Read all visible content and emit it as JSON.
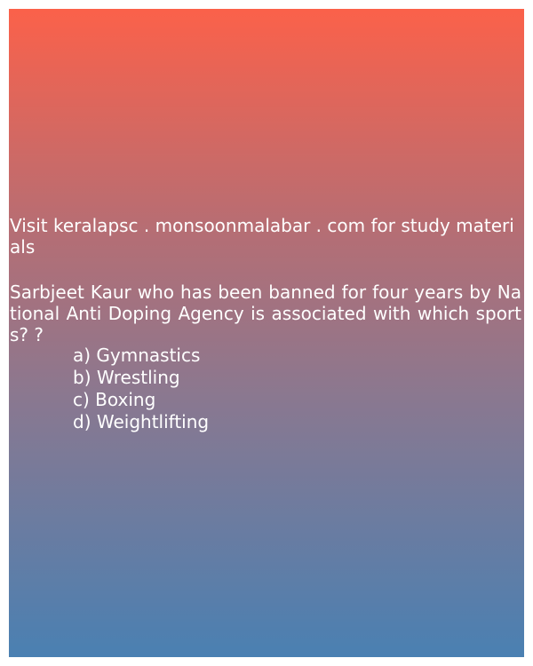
{
  "visit_text": "Visit keralapsc . monsoonmalabar . com for study materials",
  "question": "Sarbjeet Kaur who has been banned for four years by National Anti Doping Agency is associated with which sports? ?",
  "options": [
    "a) Gymnastics",
    "b) Wrestling",
    "c) Boxing",
    "d) Weightlifting"
  ],
  "colors": {
    "gradient_top": "#fb614a",
    "gradient_bottom": "#4a80b2",
    "text": "#ffffff"
  }
}
